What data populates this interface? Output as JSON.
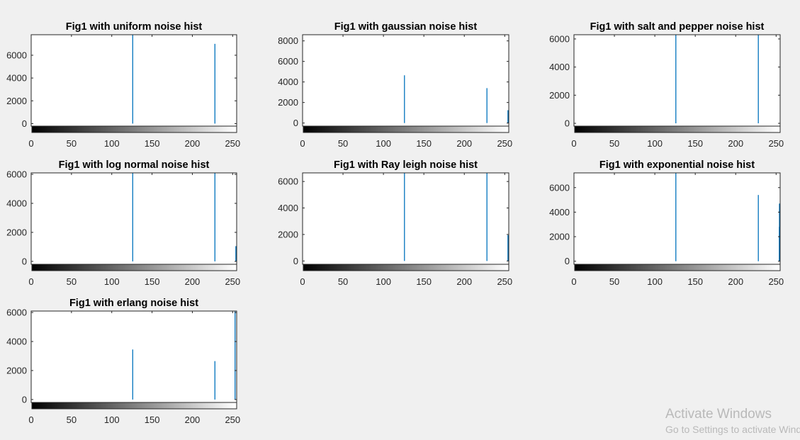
{
  "colors": {
    "bar": "#0072bd",
    "axis": "#262626",
    "background": "#f0f0f0",
    "axes_face": "#ffffff"
  },
  "chart_data": [
    {
      "type": "bar",
      "title": "Fig1 with uniform noise hist",
      "xlim": [
        0,
        255
      ],
      "ylim": [
        -220,
        7800
      ],
      "xticks": [
        0,
        50,
        100,
        150,
        200,
        250
      ],
      "yticks": [
        0,
        2000,
        4000,
        6000
      ],
      "colorbar": "grayscale",
      "x": [
        126,
        228
      ],
      "values": [
        7800,
        7000
      ]
    },
    {
      "type": "bar",
      "title": "Fig1 with gaussian noise hist",
      "xlim": [
        0,
        255
      ],
      "ylim": [
        -300,
        8600
      ],
      "xticks": [
        0,
        50,
        100,
        150,
        200,
        250
      ],
      "yticks": [
        0,
        2000,
        4000,
        6000,
        8000
      ],
      "colorbar": "grayscale",
      "x": [
        126,
        228,
        254
      ],
      "values": [
        4650,
        3400,
        1250
      ]
    },
    {
      "type": "bar",
      "title": "Fig1 with salt and pepper noise hist",
      "xlim": [
        0,
        255
      ],
      "ylim": [
        -200,
        6300
      ],
      "xticks": [
        0,
        50,
        100,
        150,
        200,
        250
      ],
      "yticks": [
        0,
        2000,
        4000,
        6000
      ],
      "colorbar": "grayscale",
      "x": [
        126,
        228
      ],
      "values": [
        6300,
        6300
      ]
    },
    {
      "type": "bar",
      "title": "Fig1 with log normal noise hist",
      "xlim": [
        0,
        255
      ],
      "ylim": [
        -200,
        6100
      ],
      "xticks": [
        0,
        50,
        100,
        150,
        200,
        250
      ],
      "yticks": [
        0,
        2000,
        4000,
        6000
      ],
      "colorbar": "grayscale",
      "x": [
        126,
        228,
        254
      ],
      "values": [
        6100,
        6100,
        1050
      ]
    },
    {
      "type": "bar",
      "title": "Fig1 with Ray leigh noise hist",
      "xlim": [
        0,
        255
      ],
      "ylim": [
        -250,
        6650
      ],
      "xticks": [
        0,
        50,
        100,
        150,
        200,
        250
      ],
      "yticks": [
        0,
        2000,
        4000,
        6000
      ],
      "colorbar": "grayscale",
      "x": [
        126,
        228,
        254
      ],
      "values": [
        6650,
        6650,
        1950
      ]
    },
    {
      "type": "bar",
      "title": "Fig1 with exponential noise hist",
      "xlim": [
        0,
        255
      ],
      "ylim": [
        -250,
        7200
      ],
      "xticks": [
        0,
        50,
        100,
        150,
        200,
        250
      ],
      "yticks": [
        0,
        2000,
        4000,
        6000
      ],
      "colorbar": "grayscale",
      "x": [
        126,
        228,
        254,
        255
      ],
      "values": [
        7200,
        5400,
        2800,
        4700
      ]
    },
    {
      "type": "bar",
      "title": "Fig1 with erlang noise hist",
      "xlim": [
        0,
        255
      ],
      "ylim": [
        -200,
        6100
      ],
      "xticks": [
        0,
        50,
        100,
        150,
        200,
        250
      ],
      "yticks": [
        0,
        2000,
        4000,
        6000
      ],
      "colorbar": "grayscale",
      "x": [
        126,
        228,
        253
      ],
      "values": [
        3450,
        2650,
        6100
      ]
    }
  ],
  "watermark": {
    "line1": "Activate Windows",
    "line2": "Go to Settings to activate Windows."
  }
}
